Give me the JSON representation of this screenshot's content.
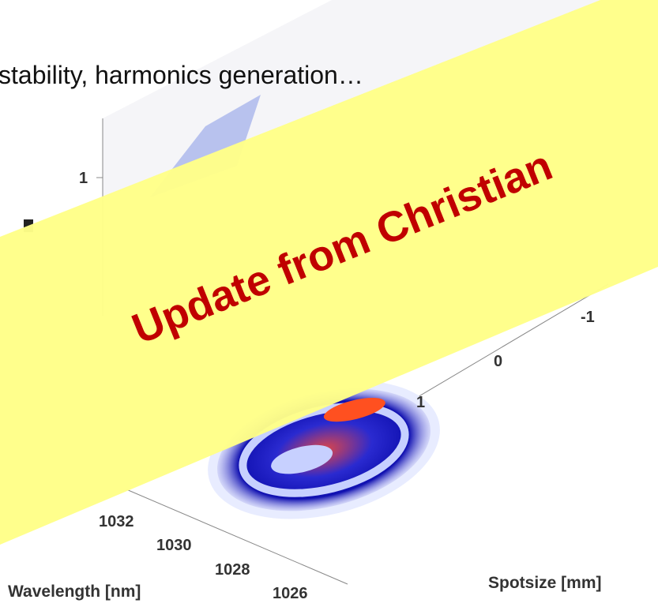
{
  "header": {
    "text": "stability, harmonics generation…"
  },
  "banner": {
    "text": "Update from Christian"
  },
  "plot": {
    "z_tick": "1",
    "x_ticks": [
      "1032",
      "1030",
      "1028",
      "1026"
    ],
    "y_ticks": [
      "-1",
      "0",
      "1"
    ],
    "x_label": "Wavelength [nm]",
    "y_label": "Spotsize [mm]"
  }
}
